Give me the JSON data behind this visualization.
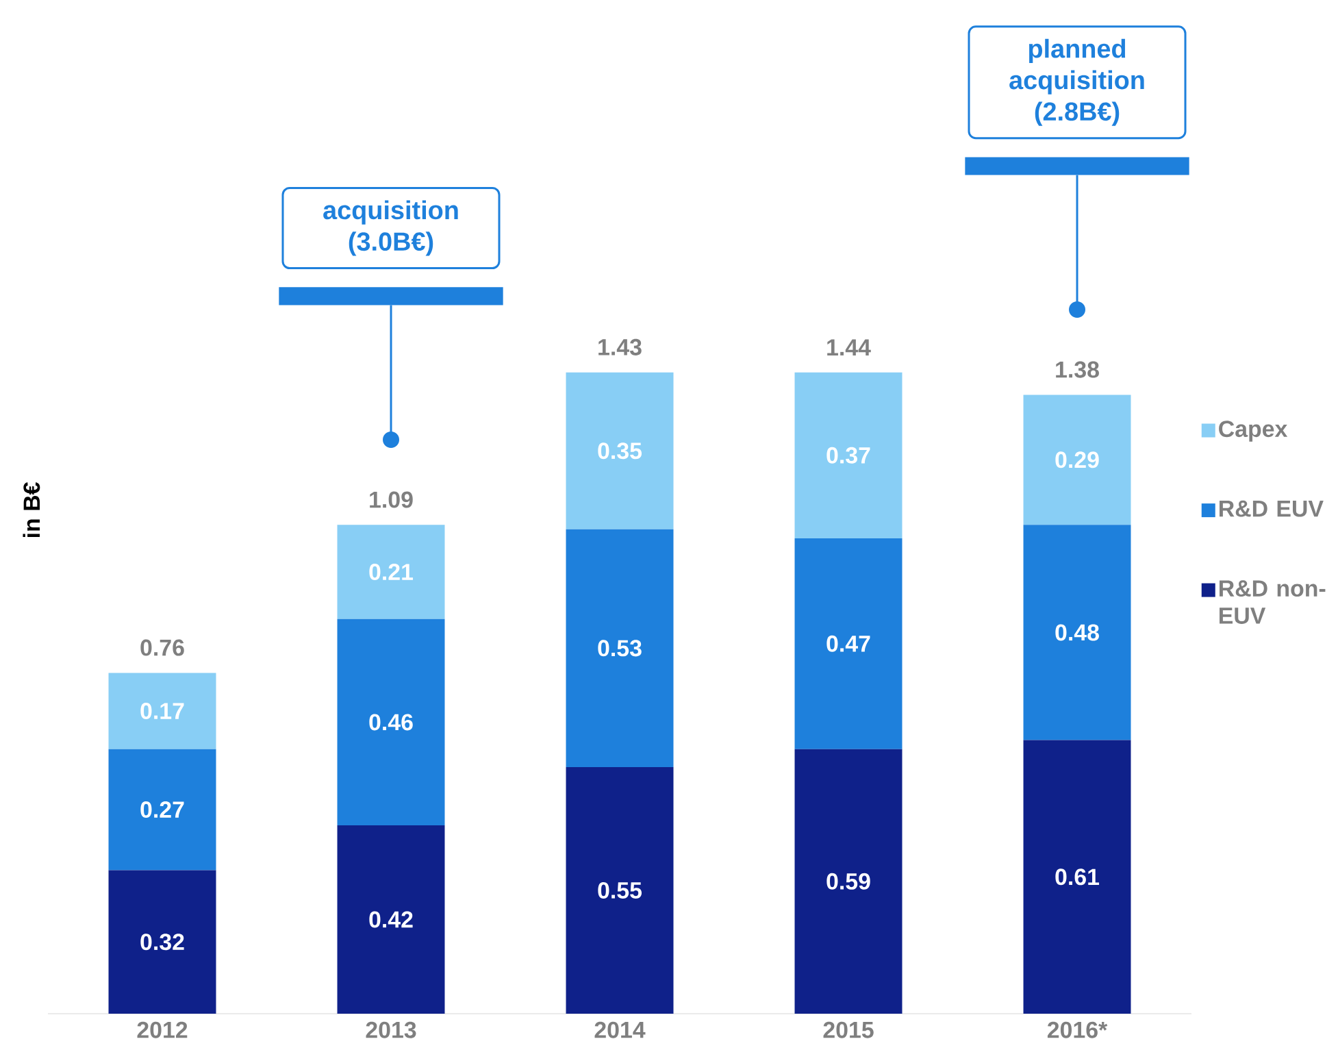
{
  "chart_data": {
    "type": "bar",
    "stacked": true,
    "ylabel": "in B€",
    "categories": [
      "2012",
      "2013",
      "2014",
      "2015",
      "2016*"
    ],
    "series": [
      {
        "name": "R&D non-EUV",
        "color": "#0f218a",
        "values": [
          0.32,
          0.42,
          0.55,
          0.59,
          0.61
        ]
      },
      {
        "name": "R&D EUV",
        "color": "#1e80dc",
        "values": [
          0.27,
          0.46,
          0.53,
          0.47,
          0.48
        ]
      },
      {
        "name": "Capex",
        "color": "#88cef5",
        "values": [
          0.17,
          0.21,
          0.35,
          0.37,
          0.29
        ]
      }
    ],
    "totals": [
      "0.76",
      "1.09",
      "1.43",
      "1.44",
      "1.38"
    ],
    "data_labels": true,
    "legend": "right",
    "annotations": [
      "acquisition (3.0B€)",
      "planned acquisition (2.8B€)"
    ]
  }
}
